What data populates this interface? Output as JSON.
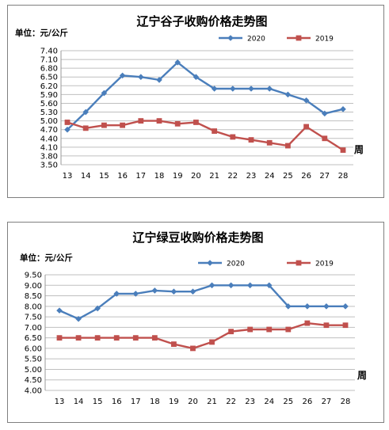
{
  "colors": {
    "series_2020": "#4a7ebb",
    "series_2019": "#c0504d",
    "gridline": "#bfbfbf",
    "border": "#7f7f7f"
  },
  "chart_data": [
    {
      "type": "line",
      "title": "辽宁谷子收购价格走势图",
      "unit_label": "单位：元/公斤",
      "xlabel": "周",
      "ylabel": "",
      "categories": [
        "13",
        "14",
        "15",
        "16",
        "17",
        "18",
        "19",
        "20",
        "21",
        "22",
        "23",
        "24",
        "25",
        "26",
        "27",
        "28"
      ],
      "y_ticks": [
        "3.50",
        "3.80",
        "4.10",
        "4.40",
        "4.70",
        "5.00",
        "5.30",
        "5.60",
        "5.90",
        "6.20",
        "6.50",
        "6.80",
        "7.10",
        "7.40"
      ],
      "ylim": [
        3.5,
        7.4
      ],
      "grid": true,
      "legend_position": "top-right",
      "series": [
        {
          "name": "2020",
          "marker": "diamond",
          "values": [
            4.7,
            5.3,
            5.95,
            6.55,
            6.5,
            6.4,
            7.0,
            6.5,
            6.1,
            6.1,
            6.1,
            6.1,
            5.9,
            5.7,
            5.25,
            5.4
          ]
        },
        {
          "name": "2019",
          "marker": "square",
          "values": [
            4.95,
            4.75,
            4.85,
            4.85,
            5.0,
            5.0,
            4.9,
            4.95,
            4.65,
            4.45,
            4.35,
            4.25,
            4.15,
            4.8,
            4.4,
            4.0
          ]
        }
      ]
    },
    {
      "type": "line",
      "title": "辽宁绿豆收购价格走势图",
      "unit_label": "单位：元/公斤",
      "xlabel": "周",
      "ylabel": "",
      "categories": [
        "13",
        "14",
        "15",
        "16",
        "17",
        "18",
        "19",
        "20",
        "21",
        "22",
        "23",
        "24",
        "25",
        "26",
        "27",
        "28"
      ],
      "y_ticks": [
        "4.00",
        "4.50",
        "5.00",
        "5.50",
        "6.00",
        "6.50",
        "7.00",
        "7.50",
        "8.00",
        "8.50",
        "9.00",
        "9.50"
      ],
      "ylim": [
        4.0,
        9.5
      ],
      "grid": true,
      "legend_position": "top-right",
      "series": [
        {
          "name": "2020",
          "marker": "diamond",
          "values": [
            7.8,
            7.4,
            7.9,
            8.6,
            8.6,
            8.75,
            8.7,
            8.7,
            9.0,
            9.0,
            9.0,
            9.0,
            8.0,
            8.0,
            8.0,
            8.0
          ]
        },
        {
          "name": "2019",
          "marker": "square",
          "values": [
            6.5,
            6.5,
            6.5,
            6.5,
            6.5,
            6.5,
            6.2,
            6.0,
            6.3,
            6.8,
            6.9,
            6.9,
            6.9,
            7.2,
            7.1,
            7.1
          ]
        }
      ]
    }
  ]
}
